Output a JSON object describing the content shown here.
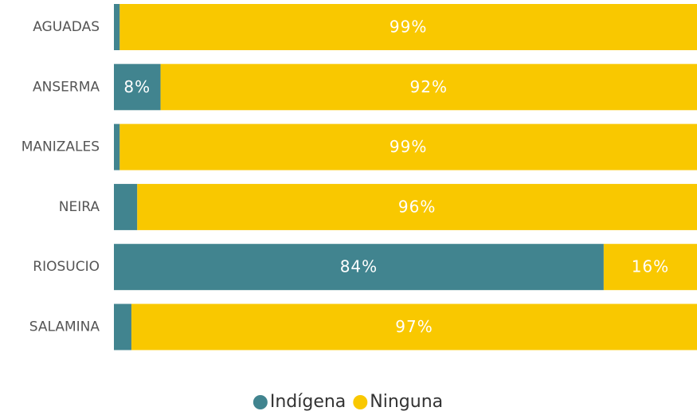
{
  "chart_data": {
    "type": "stacked_bar_horizontal",
    "categories": [
      "AGUADAS",
      "ANSERMA",
      "MANIZALES",
      "NEIRA",
      "RIOSUCIO",
      "SALAMINA"
    ],
    "series": [
      {
        "name": "Indígena",
        "color": "#41848f",
        "values": [
          1,
          8,
          1,
          4,
          84,
          3
        ],
        "value_labels": [
          null,
          "8%",
          null,
          null,
          "84%",
          null
        ]
      },
      {
        "name": "Ninguna",
        "color": "#f9c800",
        "values": [
          99,
          92,
          99,
          96,
          16,
          97
        ],
        "value_labels": [
          "99%",
          "92%",
          "99%",
          "96%",
          "16%",
          "97%"
        ]
      }
    ],
    "xlim": [
      0,
      100
    ],
    "legend": "bottom"
  }
}
